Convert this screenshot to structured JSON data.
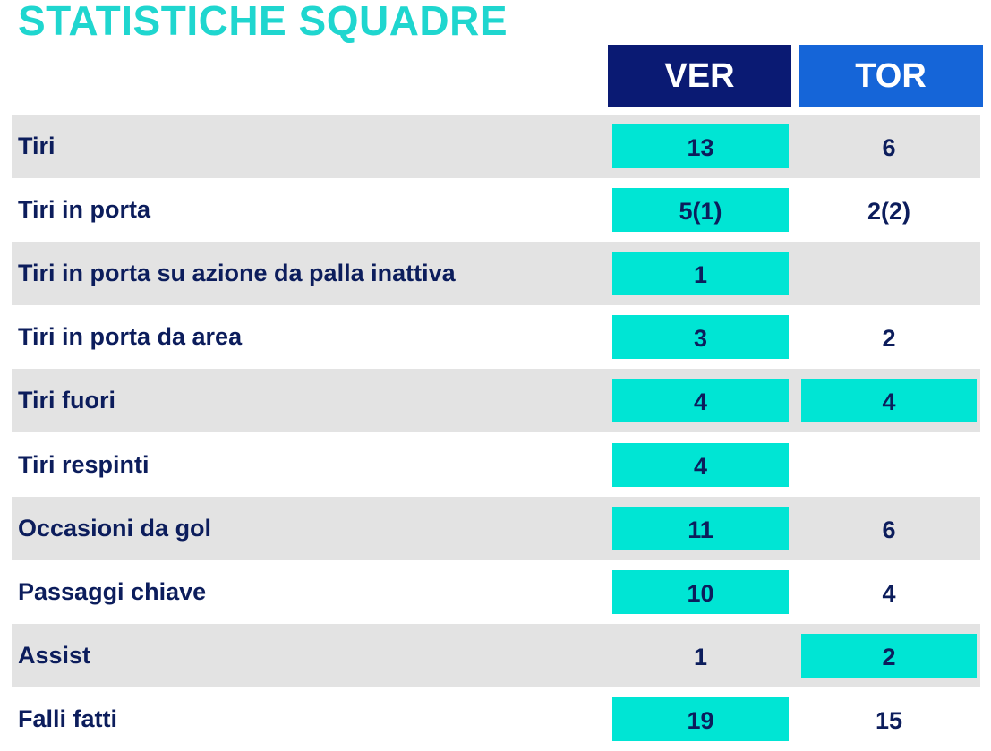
{
  "title": "STATISTICHE SQUADRE",
  "colors": {
    "title": "#1fd6cf",
    "ver_header": "#0a1a73",
    "tor_header": "#1565d8",
    "highlight": "#00e5d4",
    "text": "#0c1d5c",
    "row_shade": "#e3e3e3"
  },
  "teams": {
    "home": "VER",
    "away": "TOR"
  },
  "rows": [
    {
      "label": "Tiri",
      "ver": "13",
      "tor": "6",
      "highlight": "ver"
    },
    {
      "label": "Tiri in porta",
      "ver": "5(1)",
      "tor": "2(2)",
      "highlight": "ver"
    },
    {
      "label": "Tiri in porta su azione da palla inattiva",
      "ver": "1",
      "tor": "",
      "highlight": "ver"
    },
    {
      "label": "Tiri in porta da area",
      "ver": "3",
      "tor": "2",
      "highlight": "ver"
    },
    {
      "label": "Tiri fuori",
      "ver": "4",
      "tor": "4",
      "highlight": "both"
    },
    {
      "label": "Tiri respinti",
      "ver": "4",
      "tor": "",
      "highlight": "ver"
    },
    {
      "label": "Occasioni da gol",
      "ver": "11",
      "tor": "6",
      "highlight": "ver"
    },
    {
      "label": "Passaggi chiave",
      "ver": "10",
      "tor": "4",
      "highlight": "ver"
    },
    {
      "label": "Assist",
      "ver": "1",
      "tor": "2",
      "highlight": "tor"
    },
    {
      "label": "Falli fatti",
      "ver": "19",
      "tor": "15",
      "highlight": "ver"
    }
  ]
}
